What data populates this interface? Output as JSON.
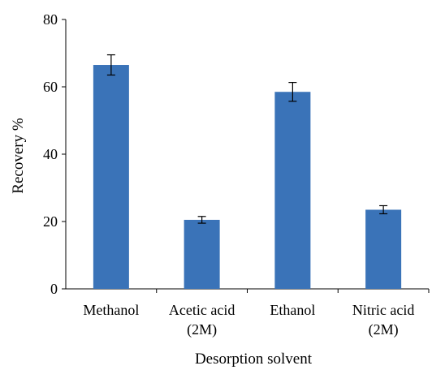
{
  "chart_data": {
    "type": "bar",
    "categories": [
      [
        "Methanol"
      ],
      [
        "Acetic acid",
        "(2M)"
      ],
      [
        "Ethanol"
      ],
      [
        "Nitric acid",
        "(2M)"
      ]
    ],
    "values": [
      66.5,
      20.5,
      58.5,
      23.5
    ],
    "errors": [
      3.0,
      1.0,
      2.8,
      1.2
    ],
    "xlabel": "Desorption solvent",
    "ylabel": "Recovery %",
    "ylim": [
      0,
      80
    ],
    "yticks": [
      0,
      20,
      40,
      60,
      80
    ],
    "bar_color": "#3A73B8",
    "grid": false,
    "legend": "none"
  }
}
